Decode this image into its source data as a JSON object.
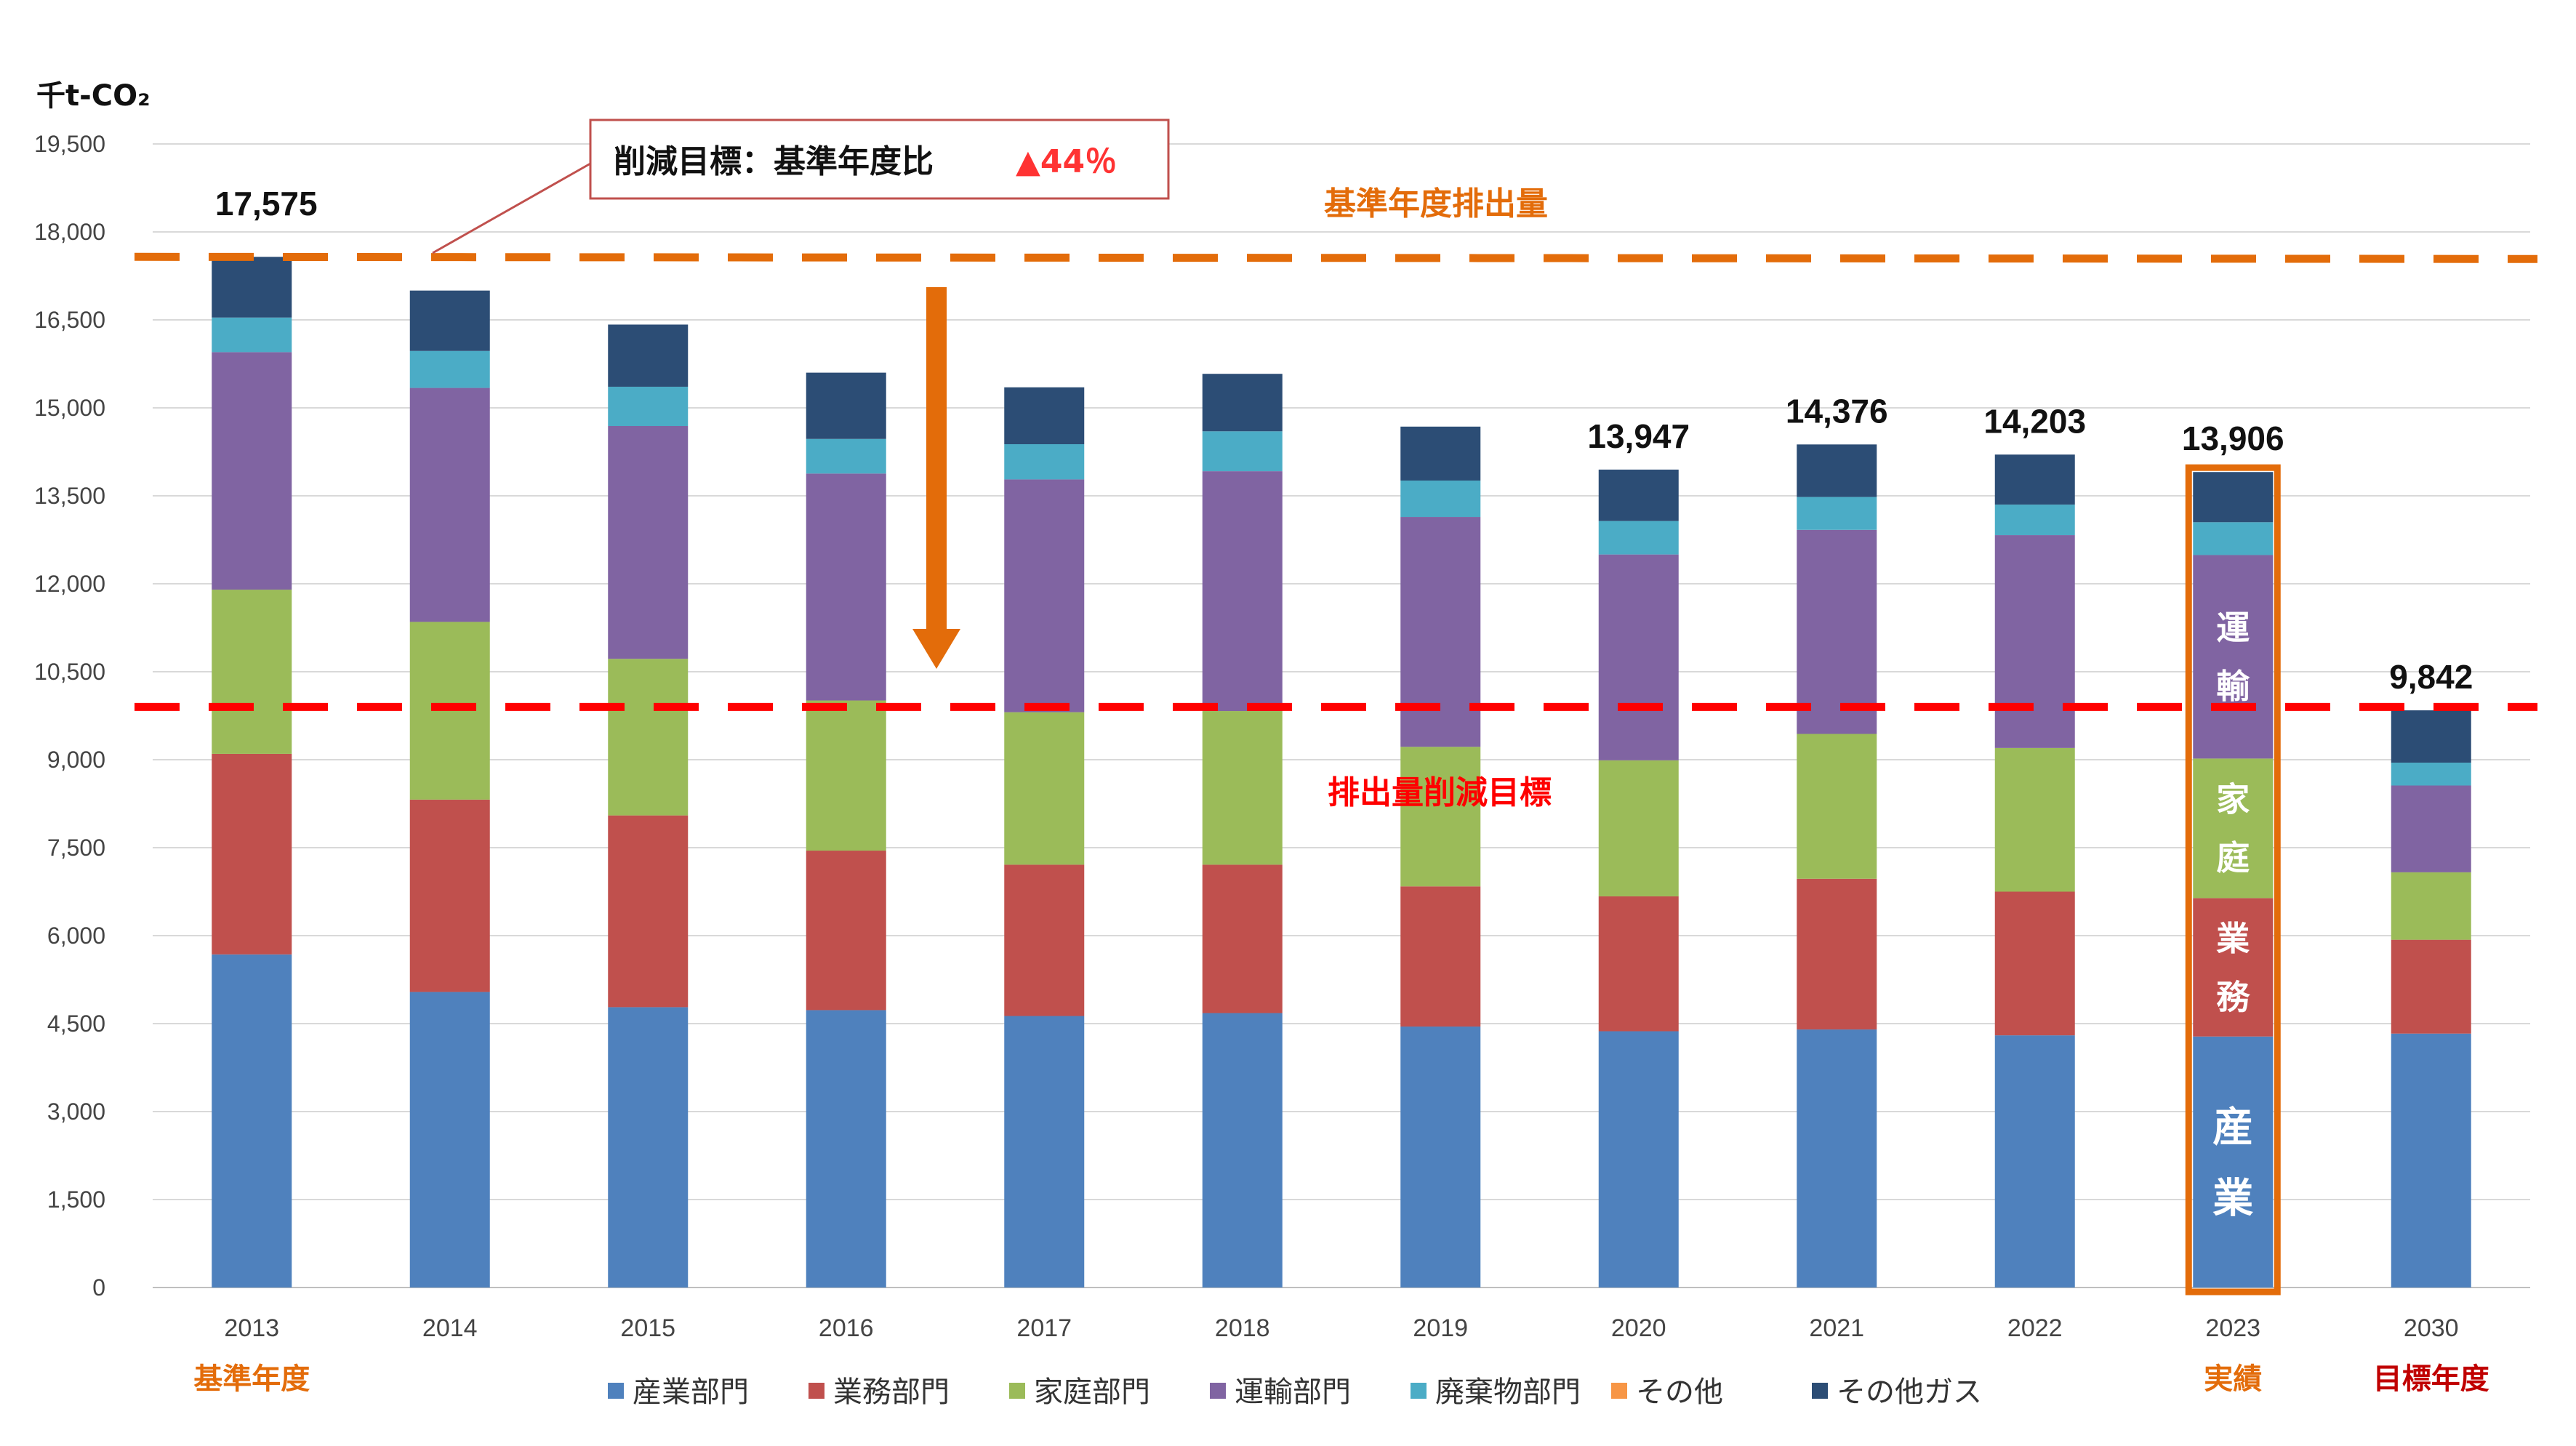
{
  "chart_data": {
    "type": "bar",
    "stacked": true,
    "unit_label": "千t-CO₂",
    "categories": [
      "2013",
      "2014",
      "2015",
      "2016",
      "2017",
      "2018",
      "2019",
      "2020",
      "2021",
      "2022",
      "2023",
      "2030"
    ],
    "category_notes": [
      {
        "category": "2013",
        "text": "基準年度",
        "color": "#E36C0A"
      },
      {
        "category": "2023",
        "text": "実績",
        "color": "#E36C0A"
      },
      {
        "category": "2030",
        "text": "目標年度",
        "color": "#C00000"
      }
    ],
    "y_ticks": [
      "19,500",
      "18,000",
      "16,500",
      "15,000",
      "13,500",
      "12,000",
      "10,500",
      "9,000",
      "7,500",
      "6,000",
      "4,500",
      "3,000",
      "1,500",
      "0"
    ],
    "ylim": [
      0,
      19500
    ],
    "grid": true,
    "legend_position": "bottom",
    "series": [
      {
        "name": "産業部門",
        "color": "#4F81BD",
        "values": [
          5680,
          5040,
          4780,
          4730,
          4630,
          4680,
          4450,
          4370,
          4400,
          4300,
          4280,
          4330
        ]
      },
      {
        "name": "業務部門",
        "color": "#C0504D",
        "values": [
          3420,
          3280,
          3270,
          2720,
          2580,
          2530,
          2390,
          2300,
          2570,
          2450,
          2360,
          1600
        ]
      },
      {
        "name": "家庭部門",
        "color": "#9BBB59",
        "values": [
          2800,
          3030,
          2670,
          2560,
          2600,
          2620,
          2380,
          2320,
          2470,
          2450,
          2380,
          1150
        ]
      },
      {
        "name": "運輸部門",
        "color": "#8064A2",
        "values": [
          4050,
          3990,
          3970,
          3870,
          3970,
          4090,
          3920,
          3510,
          3480,
          3630,
          3470,
          1480
        ]
      },
      {
        "name": "廃棄物部門",
        "color": "#4BACC6",
        "values": [
          590,
          630,
          670,
          590,
          600,
          680,
          620,
          570,
          560,
          520,
          560,
          390
        ]
      },
      {
        "name": "その他",
        "color": "#F79646",
        "values": [
          0,
          0,
          0,
          0,
          0,
          0,
          0,
          0,
          0,
          0,
          0,
          0
        ]
      },
      {
        "name": "その他ガス",
        "color": "#2C4D75",
        "values": [
          1035,
          1030,
          1060,
          1130,
          970,
          980,
          920,
          877,
          896,
          853,
          856,
          892
        ]
      }
    ],
    "total_labels": [
      {
        "category": "2013",
        "text": "17,575"
      },
      {
        "category": "2020",
        "text": "13,947"
      },
      {
        "category": "2021",
        "text": "14,376"
      },
      {
        "category": "2022",
        "text": "14,203"
      },
      {
        "category": "2023",
        "text": "13,906"
      },
      {
        "category": "2030",
        "text": "9,842"
      }
    ],
    "reference_lines": [
      {
        "name": "基準年度排出量",
        "value": 17600,
        "color": "#E36C0A",
        "label": "基準年度排出量"
      },
      {
        "name": "排出量削減目標",
        "value": 9900,
        "color": "#FF0000",
        "label": "排出量削減目標"
      }
    ],
    "callout": {
      "text": "削減目標：基準年度比",
      "highlight": "▲44％",
      "highlight_color": "#FF3333"
    },
    "highlight_category": "2023",
    "highlight_color": "#E36C0A",
    "highlight_segment_labels": [
      {
        "series": "運輸部門",
        "text": "運輸"
      },
      {
        "series": "家庭部門",
        "text": "家庭"
      },
      {
        "series": "業務部門",
        "text": "業務"
      },
      {
        "series": "産業部門",
        "text": "産業"
      }
    ]
  }
}
